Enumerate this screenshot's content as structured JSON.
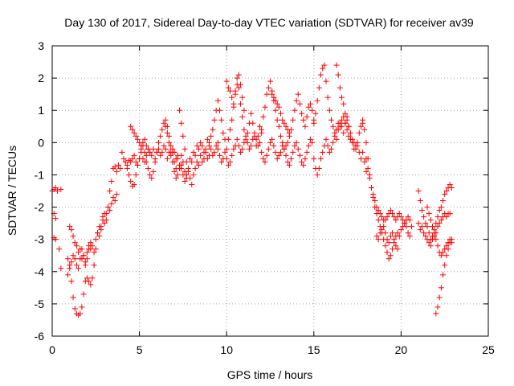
{
  "chart_data": {
    "type": "scatter",
    "title": "Day 130 of 2017, Sidereal Day-to-day VTEC variation (SDTVAR) for receiver av39",
    "xlabel": "GPS time / hours",
    "ylabel": "SDTVAR / TECUs",
    "xlim": [
      0,
      25
    ],
    "ylim": [
      -6,
      3
    ],
    "xticks": [
      "0",
      "5",
      "10",
      "15",
      "20",
      "25"
    ],
    "yticks": [
      "-6",
      "-5",
      "-4",
      "-3",
      "-2",
      "-1",
      "0",
      "1",
      "2",
      "3"
    ],
    "grid": true,
    "legend": "none",
    "marker": "+",
    "color": "#ff0000",
    "series": [
      {
        "x": [
          0.0,
          0.1,
          0.2,
          0.3,
          0.5,
          0.1,
          0.2,
          0.1,
          0.2,
          0.4,
          0.5
        ],
        "y": [
          -1.5,
          -1.45,
          -1.4,
          -1.5,
          -1.45,
          -2.2,
          -2.35,
          -2.95,
          -3.0,
          -3.3,
          -3.9
        ]
      },
      {
        "x": [
          0.9,
          1.0,
          1.1,
          1.2,
          1.3,
          1.4,
          1.5,
          1.6,
          1.7,
          1.8,
          1.9,
          2.0,
          2.1,
          2.2,
          2.3,
          2.4,
          2.5,
          2.6,
          2.7,
          2.8,
          2.9,
          3.0,
          3.1,
          3.2,
          3.3,
          3.4,
          3.5,
          3.6,
          3.7,
          3.8,
          3.9
        ],
        "y": [
          -3.6,
          -3.8,
          -4.3,
          -4.8,
          -5.15,
          -5.3,
          -5.35,
          -5.3,
          -5.1,
          -4.7,
          -4.3,
          -4.2,
          -4.3,
          -4.4,
          -4.2,
          -3.8,
          -3.3,
          -2.8,
          -2.6,
          -2.7,
          -2.3,
          -2.2,
          -2.4,
          -2.0,
          -1.5,
          -1.2,
          -0.8,
          -0.75,
          -0.9,
          -0.7,
          -0.8
        ]
      },
      {
        "x": [
          0.9,
          1.0,
          1.1,
          1.2,
          1.3,
          1.4,
          1.5,
          1.6,
          1.7,
          1.8,
          1.9,
          2.0,
          2.1,
          2.2,
          2.3,
          2.4,
          2.5,
          2.6,
          2.7,
          2.8,
          2.9,
          3.0,
          3.1,
          3.2,
          3.3,
          3.4,
          3.5,
          3.6,
          3.7
        ],
        "y": [
          -4.1,
          -3.9,
          -3.7,
          -3.5,
          -3.6,
          -3.8,
          -3.9,
          -3.6,
          -3.3,
          -3.5,
          -3.8,
          -3.6,
          -3.3,
          -3.1,
          -3.2,
          -3.4,
          -3.0,
          -2.8,
          -2.9,
          -2.6,
          -2.4,
          -2.5,
          -2.2,
          -2.0,
          -2.1,
          -1.9,
          -1.7,
          -1.8,
          -1.6
        ]
      },
      {
        "x": [
          1.0,
          1.1,
          1.2,
          1.3,
          1.4,
          1.5,
          1.6,
          1.7,
          1.8,
          1.9,
          2.0,
          2.1,
          2.2
        ],
        "y": [
          -2.6,
          -2.7,
          -2.9,
          -3.1,
          -3.2,
          -3.4,
          -3.3,
          -3.6,
          -3.5,
          -3.7,
          -3.4,
          -3.2,
          -3.3
        ]
      },
      {
        "x": [
          4.0,
          4.1,
          4.2,
          4.3,
          4.4,
          4.5,
          4.6,
          4.7,
          4.8,
          4.9,
          5.0,
          5.1,
          5.2,
          5.3,
          5.4,
          5.5,
          5.6,
          5.7,
          5.8,
          5.9,
          6.0,
          6.1,
          6.2,
          6.3,
          6.4,
          6.5,
          6.6,
          6.7,
          6.8,
          6.9,
          7.0
        ],
        "y": [
          -0.3,
          -0.5,
          -0.6,
          -0.7,
          -0.55,
          -0.6,
          -0.5,
          -0.4,
          -0.6,
          -0.7,
          -0.5,
          -0.3,
          -0.5,
          -0.6,
          -0.4,
          -0.2,
          -0.3,
          -0.4,
          -0.2,
          -0.5,
          -0.3,
          -0.2,
          -0.4,
          -0.3,
          -0.1,
          -0.2,
          -0.5,
          -0.3,
          -0.4,
          -0.2,
          -0.3
        ]
      },
      {
        "x": [
          4.3,
          4.4,
          4.5,
          4.6,
          4.7,
          4.8,
          4.9,
          5.0,
          5.1,
          5.2,
          5.3,
          5.4,
          5.5,
          5.6,
          5.7,
          5.8,
          5.9,
          6.0,
          6.1,
          6.2,
          6.3,
          6.4,
          6.5,
          6.6,
          6.7,
          6.8,
          6.9,
          7.0,
          7.1,
          7.2,
          7.3,
          7.4
        ],
        "y": [
          -0.8,
          -1.0,
          -1.2,
          -1.35,
          -1.3,
          -1.0,
          -0.7,
          -0.5,
          -0.2,
          -0.1,
          -0.3,
          -0.6,
          -0.8,
          -1.0,
          -1.1,
          -0.9,
          -0.6,
          -0.3,
          0.0,
          0.2,
          0.4,
          0.6,
          0.5,
          0.3,
          0.0,
          -0.3,
          -0.6,
          -0.9,
          -1.1,
          -1.0,
          -0.8,
          -0.7
        ]
      },
      {
        "x": [
          4.5,
          4.6,
          4.7,
          4.8,
          4.9,
          5.0,
          5.1,
          5.2,
          5.3,
          5.4,
          5.5,
          5.6
        ],
        "y": [
          0.5,
          0.4,
          0.3,
          0.2,
          0.1,
          0.0,
          -0.1,
          0.0,
          0.1,
          -0.1,
          -0.2,
          -0.3
        ]
      },
      {
        "x": [
          6.5,
          6.6,
          6.7,
          6.8,
          6.9,
          7.0,
          7.1,
          7.2,
          7.3,
          7.4,
          7.5,
          7.6,
          7.7,
          7.8,
          7.9,
          8.0,
          8.1,
          8.2,
          8.3,
          8.4,
          8.5,
          8.6,
          8.7,
          8.8,
          8.9,
          9.0
        ],
        "y": [
          0.7,
          0.5,
          0.2,
          -0.1,
          -0.3,
          -0.6,
          -0.8,
          -0.5,
          -0.7,
          -0.4,
          -0.6,
          -0.9,
          -1.0,
          -0.8,
          -0.5,
          -0.6,
          -0.3,
          -0.4,
          -0.1,
          -0.2,
          0.0,
          -0.1,
          -0.3,
          -0.2,
          0.1,
          -0.1
        ]
      },
      {
        "x": [
          7.0,
          7.1,
          7.2,
          7.3,
          7.4,
          7.5,
          7.6,
          7.7,
          7.8,
          7.9,
          8.0,
          8.1,
          8.2,
          8.3,
          8.4,
          8.5,
          8.6,
          8.7,
          8.8,
          8.9,
          9.0,
          9.1,
          9.2,
          9.3,
          9.4,
          9.5
        ],
        "y": [
          -0.3,
          -0.5,
          -0.4,
          -0.7,
          -0.8,
          -1.0,
          -1.2,
          -1.1,
          -0.9,
          -1.1,
          -1.3,
          -1.0,
          -0.8,
          -0.6,
          -0.7,
          -0.4,
          -0.6,
          -0.5,
          -0.3,
          -0.5,
          -0.4,
          -0.2,
          -0.4,
          -0.3,
          -0.1,
          0.0
        ]
      },
      {
        "x": [
          7.3,
          7.4,
          7.5,
          7.6,
          7.7
        ],
        "y": [
          1.0,
          0.6,
          0.2,
          -0.2,
          -0.6
        ]
      },
      {
        "x": [
          9.0,
          9.1,
          9.2,
          9.3,
          9.4,
          9.5,
          9.6,
          9.7,
          9.8,
          9.9,
          10.0,
          10.1,
          10.2,
          10.3,
          10.4,
          10.5,
          10.6,
          10.7,
          10.8,
          10.9,
          11.0,
          11.1,
          11.2,
          11.3,
          11.4,
          11.5,
          11.6,
          11.7,
          11.8,
          11.9,
          12.0
        ],
        "y": [
          0.0,
          0.2,
          0.4,
          0.7,
          1.0,
          1.3,
          1.0,
          0.7,
          0.3,
          0.1,
          -0.2,
          0.1,
          0.4,
          0.7,
          1.1,
          1.6,
          2.0,
          1.7,
          1.2,
          0.8,
          0.4,
          0.1,
          0.3,
          0.6,
          0.9,
          0.6,
          0.2,
          -0.1,
          0.2,
          0.5,
          0.3
        ]
      },
      {
        "x": [
          9.5,
          9.6,
          9.7,
          9.8,
          9.9,
          10.0,
          10.1,
          10.2,
          10.3,
          10.4,
          10.5,
          10.6,
          10.7,
          10.8,
          10.9,
          11.0,
          11.1,
          11.2,
          11.3,
          11.4,
          11.5,
          11.6,
          11.7,
          11.8,
          11.9
        ],
        "y": [
          -0.2,
          -0.4,
          -0.6,
          -0.5,
          -0.3,
          -0.5,
          -0.7,
          -0.6,
          -0.4,
          -0.2,
          -0.1,
          0.1,
          -0.1,
          -0.3,
          -0.2,
          0.0,
          0.2,
          0.0,
          -0.2,
          -0.1,
          0.1,
          0.3,
          0.1,
          -0.1,
          0.0
        ]
      },
      {
        "x": [
          10.0,
          10.1,
          10.2,
          10.3,
          10.4,
          10.5,
          10.6,
          10.7,
          10.8,
          10.9,
          11.0
        ],
        "y": [
          1.9,
          1.7,
          1.6,
          1.4,
          1.2,
          1.5,
          1.8,
          2.1,
          1.8,
          1.4,
          1.0
        ]
      },
      {
        "x": [
          12.0,
          12.1,
          12.2,
          12.3,
          12.4,
          12.5,
          12.6,
          12.7,
          12.8,
          12.9,
          13.0,
          13.1,
          13.2,
          13.3,
          13.4,
          13.5,
          13.6,
          13.7,
          13.8,
          13.9,
          14.0,
          14.1,
          14.2,
          14.3,
          14.4,
          14.5,
          14.6,
          14.7,
          14.8,
          14.9,
          15.0
        ],
        "y": [
          0.4,
          0.8,
          1.1,
          1.5,
          1.7,
          1.9,
          1.6,
          1.3,
          1.0,
          0.7,
          0.5,
          0.2,
          0.0,
          -0.2,
          -0.1,
          0.0,
          0.2,
          0.4,
          0.7,
          1.0,
          1.3,
          1.5,
          1.2,
          0.9,
          0.7,
          0.5,
          0.8,
          1.1,
          1.2,
          1.0,
          0.7
        ]
      },
      {
        "x": [
          12.0,
          12.1,
          12.2,
          12.3,
          12.4,
          12.5,
          12.6,
          12.7,
          12.8,
          12.9,
          13.0,
          13.1,
          13.2,
          13.3,
          13.4,
          13.5,
          13.6,
          13.7,
          13.8,
          13.9,
          14.0,
          14.1,
          14.2,
          14.3,
          14.4,
          14.5,
          14.6,
          14.7,
          14.8,
          14.9
        ],
        "y": [
          -0.3,
          -0.5,
          -0.6,
          -0.4,
          -0.2,
          0.0,
          0.1,
          -0.1,
          -0.3,
          -0.5,
          -0.4,
          -0.3,
          -0.1,
          -0.2,
          -0.4,
          -0.6,
          -0.7,
          -0.5,
          -0.3,
          -0.1,
          0.0,
          -0.2,
          -0.4,
          -0.6,
          -0.7,
          -0.5,
          -0.3,
          -0.1,
          0.1,
          0.0
        ]
      },
      {
        "x": [
          12.6,
          12.7,
          12.8,
          12.9,
          13.0,
          13.1,
          13.2,
          13.3,
          13.4,
          13.5,
          13.6
        ],
        "y": [
          1.5,
          1.4,
          1.3,
          1.2,
          1.1,
          0.9,
          0.7,
          0.6,
          0.5,
          0.4,
          0.3
        ]
      },
      {
        "x": [
          15.0,
          15.1,
          15.2,
          15.3,
          15.4,
          15.5,
          15.6,
          15.7,
          15.8,
          15.9,
          16.0,
          16.1,
          16.2,
          16.3,
          16.4,
          16.5,
          16.6,
          16.7,
          16.8,
          16.9,
          17.0,
          17.1,
          17.2,
          17.3,
          17.4,
          17.5,
          17.6,
          17.7,
          17.8,
          17.9,
          18.0
        ],
        "y": [
          0.6,
          0.9,
          1.3,
          1.7,
          2.1,
          2.3,
          2.4,
          1.9,
          1.4,
          1.0,
          0.7,
          0.5,
          0.3,
          0.1,
          0.4,
          0.6,
          0.5,
          0.3,
          0.6,
          0.8,
          0.5,
          0.3,
          0.1,
          0.0,
          -0.2,
          -0.1,
          -0.3,
          -0.5,
          -0.3,
          -0.6,
          -0.9
        ]
      },
      {
        "x": [
          15.0,
          15.1,
          15.2,
          15.3,
          15.4,
          15.5,
          15.6,
          15.7,
          15.8,
          15.9,
          16.0,
          16.1,
          16.2,
          16.3,
          16.4,
          16.5,
          16.6,
          16.7,
          16.8,
          16.9,
          17.0,
          17.1,
          17.2,
          17.3,
          17.4,
          17.5,
          17.6,
          17.7,
          17.8
        ],
        "y": [
          -0.5,
          -0.8,
          -1.0,
          -0.8,
          -0.5,
          -0.3,
          -0.1,
          0.1,
          -0.1,
          -0.3,
          -0.2,
          0.0,
          0.2,
          0.4,
          0.6,
          0.5,
          0.7,
          0.8,
          0.6,
          0.4,
          0.2,
          0.1,
          0.0,
          -0.2,
          -0.1,
          0.0,
          0.3,
          0.5,
          0.6
        ]
      },
      {
        "x": [
          16.3,
          16.4,
          16.5,
          16.6,
          16.7,
          16.8,
          16.9,
          17.0
        ],
        "y": [
          2.4,
          2.1,
          1.7,
          1.4,
          1.2,
          0.9,
          0.7,
          0.5
        ]
      },
      {
        "x": [
          17.8,
          17.9,
          18.0,
          18.1,
          18.2,
          18.3,
          18.4,
          18.5,
          18.6,
          18.7,
          18.8,
          18.9,
          19.0,
          19.1,
          19.2,
          19.3,
          19.4,
          19.5,
          19.6,
          19.7,
          19.8,
          19.9,
          20.0,
          20.1,
          20.2,
          20.3,
          20.4,
          20.5
        ],
        "y": [
          0.7,
          0.4,
          0.0,
          -0.5,
          -1.0,
          -1.4,
          -1.7,
          -2.0,
          -2.2,
          -2.4,
          -2.6,
          -2.8,
          -3.0,
          -3.2,
          -3.4,
          -3.6,
          -3.5,
          -3.3,
          -3.1,
          -2.9,
          -2.8,
          -2.9,
          -2.7,
          -2.6,
          -2.5,
          -2.6,
          -2.8,
          -2.9
        ]
      },
      {
        "x": [
          18.0,
          18.1,
          18.2,
          18.3,
          18.4,
          18.5,
          18.6,
          18.7,
          18.8,
          18.9,
          19.0,
          19.1,
          19.2,
          19.3,
          19.4,
          19.5,
          19.6,
          19.7,
          19.8,
          19.9,
          20.0,
          20.1,
          20.2,
          20.3,
          20.4,
          20.5,
          20.6
        ],
        "y": [
          -0.5,
          -0.8,
          -1.1,
          -1.4,
          -1.6,
          -1.8,
          -2.0,
          -2.1,
          -2.2,
          -2.3,
          -2.4,
          -2.4,
          -2.3,
          -2.2,
          -2.1,
          -2.2,
          -2.3,
          -2.4,
          -2.3,
          -2.2,
          -2.3,
          -2.4,
          -2.5,
          -2.4,
          -2.3,
          -2.4,
          -2.6
        ]
      },
      {
        "x": [
          18.6,
          18.7,
          18.8,
          18.9,
          19.0,
          19.1,
          19.2,
          19.3,
          19.4,
          19.5,
          19.6,
          19.7,
          19.8
        ],
        "y": [
          -2.9,
          -3.0,
          -2.8,
          -2.7,
          -2.6,
          -2.8,
          -3.0,
          -3.1,
          -2.9,
          -2.8,
          -3.0,
          -3.2,
          -3.3
        ]
      },
      {
        "x": [
          21.0,
          21.1,
          21.2,
          21.3,
          21.4,
          21.5,
          21.6,
          21.7,
          21.8,
          21.9,
          22.0,
          22.1,
          22.2,
          22.3,
          22.4,
          22.5,
          22.6,
          22.7,
          22.8,
          22.9
        ],
        "y": [
          -1.5,
          -1.8,
          -2.1,
          -2.3,
          -2.5,
          -2.6,
          -2.8,
          -3.0,
          -2.9,
          -2.7,
          -2.5,
          -2.3,
          -2.1,
          -2.0,
          -1.8,
          -1.6,
          -1.5,
          -1.4,
          -1.3,
          -1.4
        ]
      },
      {
        "x": [
          21.0,
          21.1,
          21.2,
          21.3,
          21.4,
          21.5,
          21.6,
          21.7,
          21.8,
          21.9,
          22.0,
          22.1,
          22.2,
          22.3,
          22.4,
          22.5,
          22.6,
          22.7,
          22.8
        ],
        "y": [
          -2.5,
          -2.7,
          -2.6,
          -2.8,
          -2.9,
          -3.0,
          -3.1,
          -3.2,
          -3.0,
          -2.9,
          -2.8,
          -2.6,
          -2.5,
          -2.4,
          -2.3,
          -2.2,
          -2.3,
          -2.2,
          -2.2
        ]
      },
      {
        "x": [
          21.5,
          21.6,
          21.7,
          21.8,
          21.9,
          22.0,
          22.1,
          22.2,
          22.3,
          22.4,
          22.5,
          22.6,
          22.7,
          22.8,
          22.9
        ],
        "y": [
          -2.0,
          -2.2,
          -2.4,
          -2.6,
          -2.8,
          -3.0,
          -3.2,
          -3.4,
          -3.5,
          -3.4,
          -3.3,
          -3.2,
          -3.1,
          -3.0,
          -3.1
        ]
      },
      {
        "x": [
          22.0,
          22.1,
          22.2,
          22.3,
          22.4,
          22.5,
          22.6,
          22.7,
          22.8,
          22.9
        ],
        "y": [
          -5.3,
          -5.1,
          -4.8,
          -4.5,
          -4.1,
          -3.8,
          -3.5,
          -3.3,
          -3.1,
          -3.0
        ]
      }
    ]
  }
}
